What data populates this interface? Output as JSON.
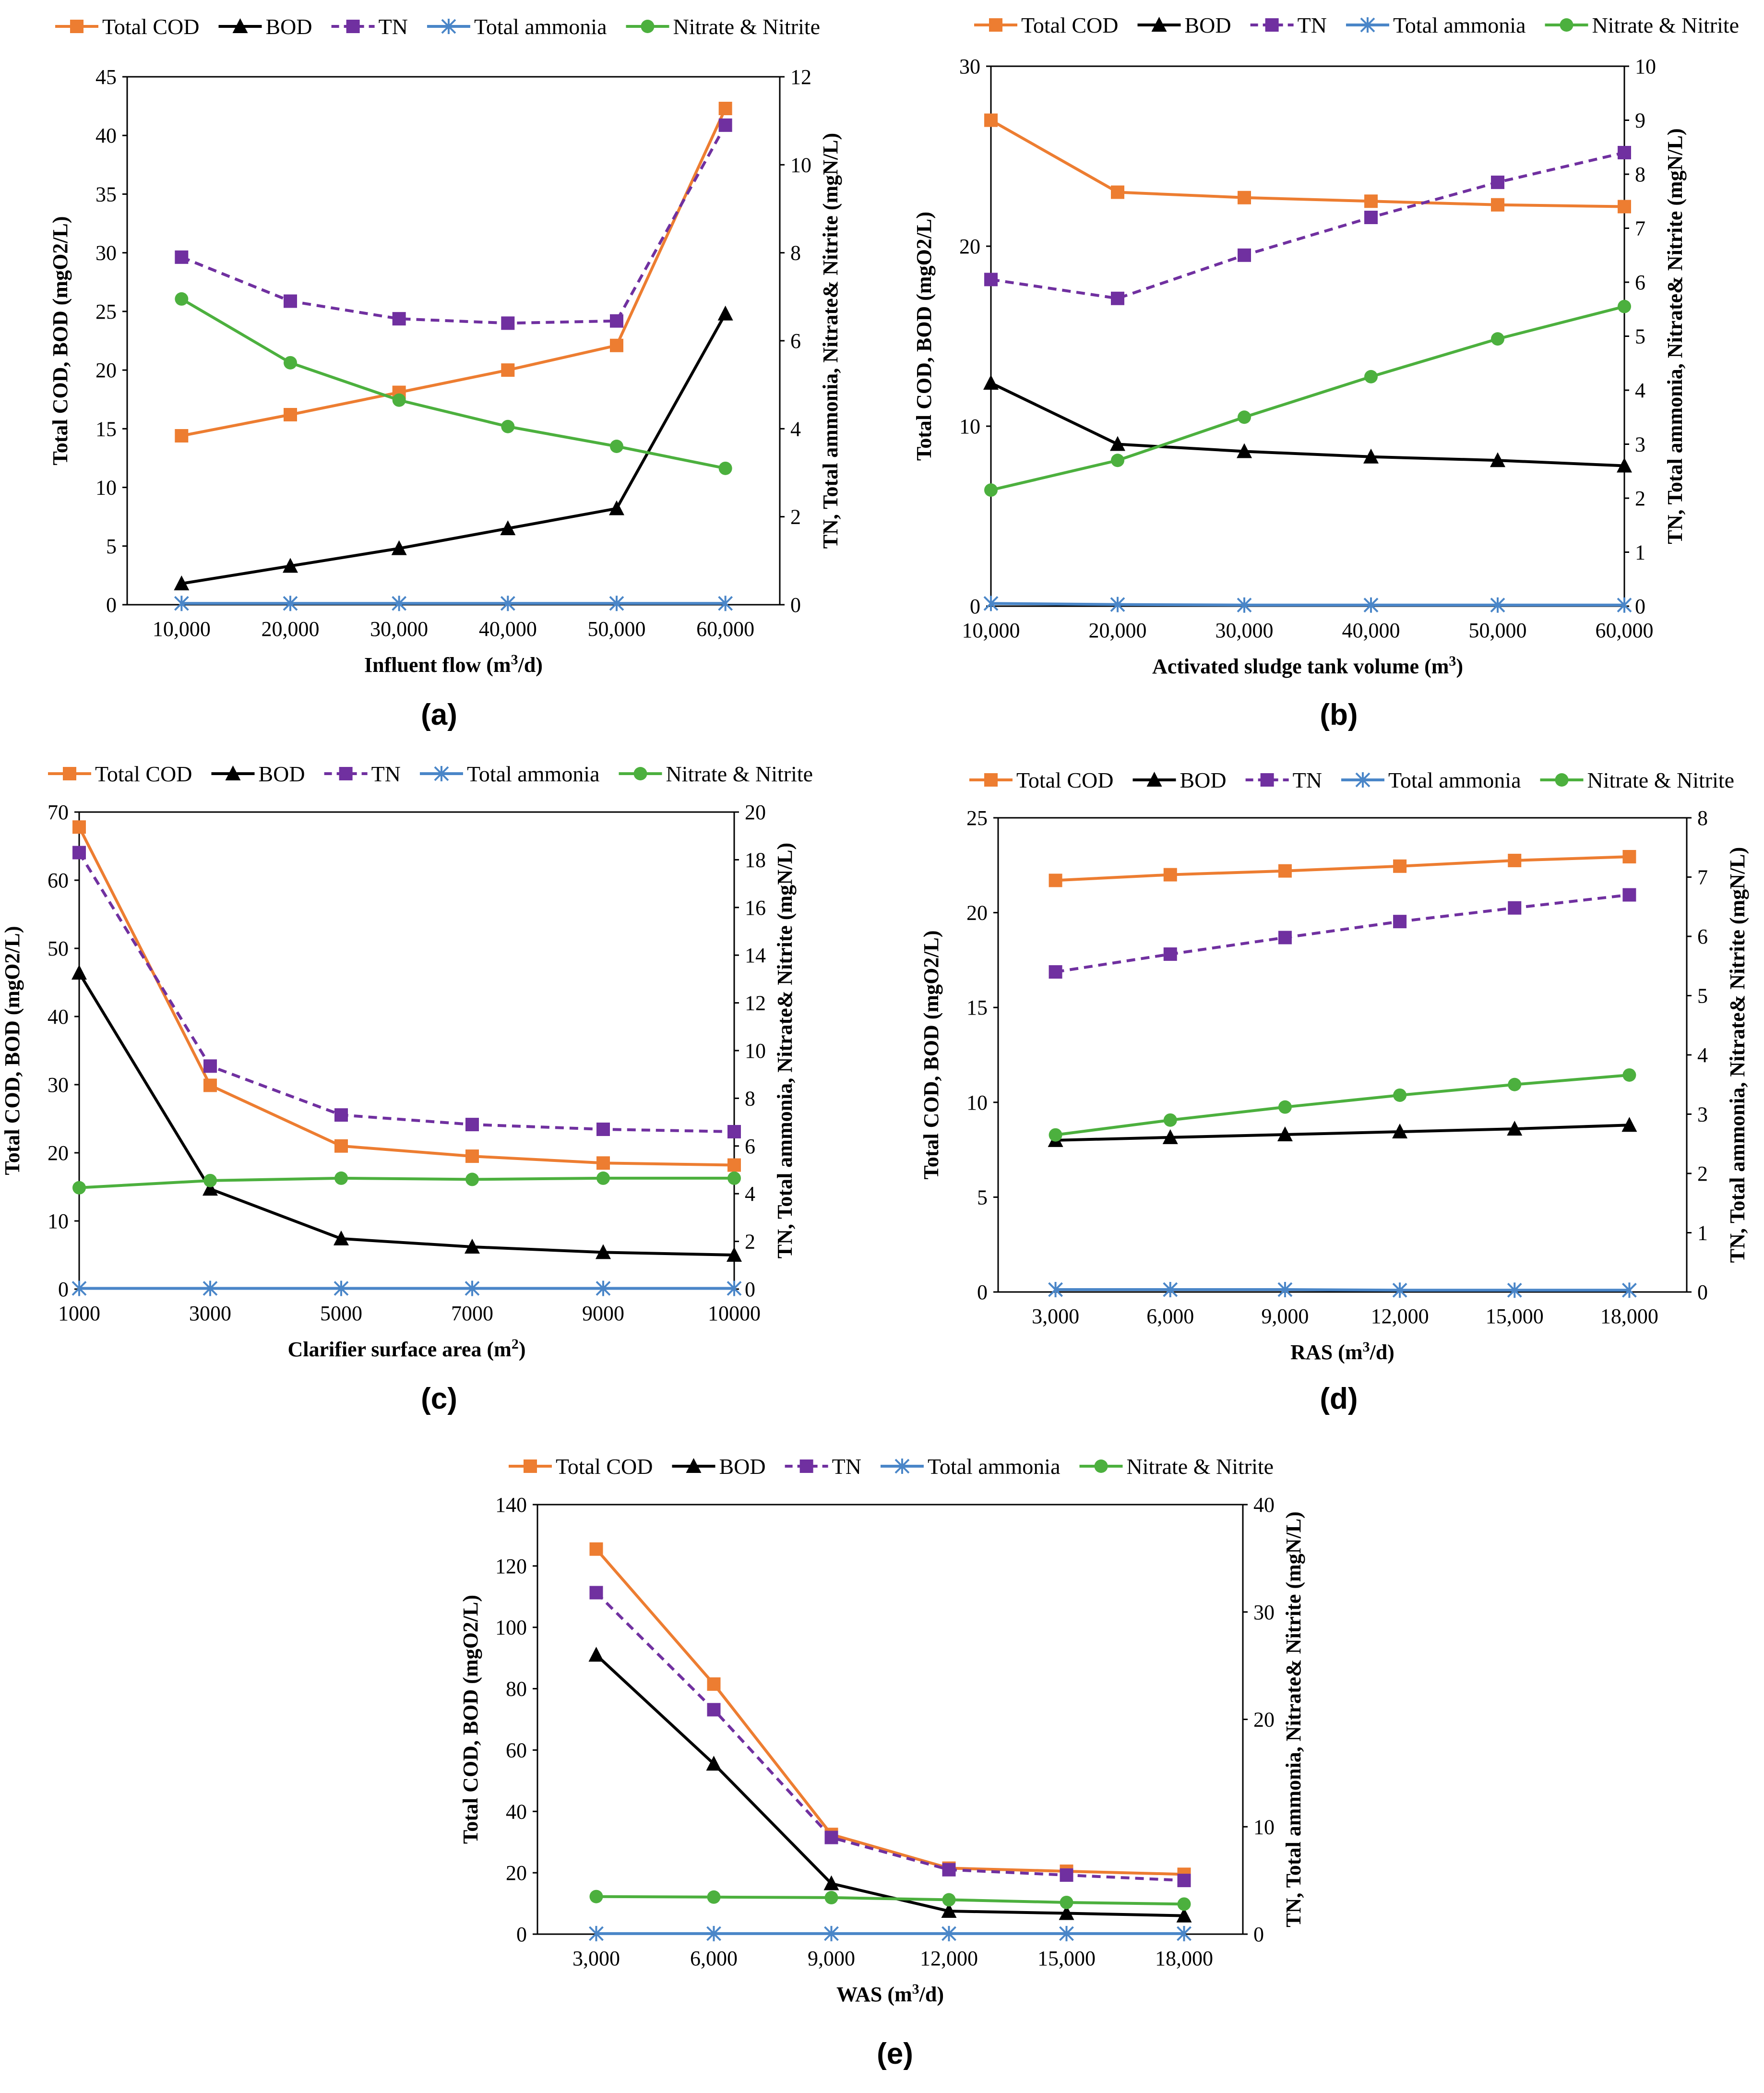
{
  "series_styles": [
    {
      "key": "cod",
      "name": "Total COD",
      "color": "#ED7D31",
      "marker": "square",
      "dash": false
    },
    {
      "key": "bod",
      "name": "BOD",
      "color": "#000000",
      "marker": "triangle",
      "dash": false
    },
    {
      "key": "tn",
      "name": "TN",
      "color": "#7030A0",
      "marker": "square",
      "dash": true
    },
    {
      "key": "amm",
      "name": "Total ammonia",
      "color": "#4A86C8",
      "marker": "asterisk",
      "dash": false
    },
    {
      "key": "nit",
      "name": "Nitrate & Nitrite",
      "color": "#4CB03E",
      "marker": "circle",
      "dash": false
    }
  ],
  "chart_data": [
    {
      "type": "line",
      "label": "(a)",
      "xlabel": "Influent flow (m3/d)",
      "xlabel_main": "Influent flow (m",
      "xlabel_sup": "3",
      "xlabel_tail": "/d)",
      "x": [
        "10,000",
        "20,000",
        "30,000",
        "40,000",
        "50,000",
        "60,000"
      ],
      "x_positions": "category",
      "ylabel": "Total COD, BOD (mgO2/L)",
      "ylim": [
        0,
        45
      ],
      "yticks": [
        0,
        5,
        10,
        15,
        20,
        25,
        30,
        35,
        40,
        45
      ],
      "y2label": "TN, Total ammonia, Nitrate& Nitrite (mgN/L)",
      "y2lim": [
        0,
        12
      ],
      "y2ticks": [
        0,
        2,
        4,
        6,
        8,
        10,
        12
      ],
      "series": [
        {
          "key": "cod",
          "name": "Total COD",
          "axis": "left",
          "values": [
            14.4,
            16.2,
            18.1,
            20.0,
            22.1,
            42.3
          ]
        },
        {
          "key": "bod",
          "name": "BOD",
          "axis": "left",
          "values": [
            1.8,
            3.3,
            4.8,
            6.5,
            8.2,
            24.8
          ]
        },
        {
          "key": "tn",
          "name": "TN",
          "axis": "right",
          "values": [
            7.9,
            6.9,
            6.5,
            6.4,
            6.45,
            10.9
          ]
        },
        {
          "key": "amm",
          "name": "Total ammonia",
          "axis": "right",
          "values": [
            0.03,
            0.03,
            0.03,
            0.03,
            0.03,
            0.03
          ]
        },
        {
          "key": "nit",
          "name": "Nitrate & Nitrite",
          "axis": "right",
          "values": [
            6.95,
            5.5,
            4.65,
            4.05,
            3.6,
            3.1
          ]
        }
      ]
    },
    {
      "type": "line",
      "label": "(b)",
      "xlabel": "Activated sludge tank volume (m3)",
      "xlabel_main": "Activated sludge tank volume (m",
      "xlabel_sup": "3",
      "xlabel_tail": ")",
      "x": [
        "10,000",
        "20,000",
        "30,000",
        "40,000",
        "50,000",
        "60,000"
      ],
      "x_positions": "edge",
      "ylabel": "Total COD, BOD (mgO2/L)",
      "ylim": [
        0,
        30
      ],
      "yticks": [
        0,
        10,
        20,
        30
      ],
      "y2label": "TN, Total ammonia, Nitrate& Nitrite (mgN/L)",
      "y2lim": [
        0,
        10
      ],
      "y2ticks": [
        0,
        1,
        2,
        3,
        4,
        5,
        6,
        7,
        8,
        9,
        10
      ],
      "series": [
        {
          "key": "cod",
          "name": "Total COD",
          "axis": "left",
          "values": [
            27.0,
            23.0,
            22.7,
            22.5,
            22.3,
            22.2
          ]
        },
        {
          "key": "bod",
          "name": "BOD",
          "axis": "left",
          "values": [
            12.4,
            9.0,
            8.6,
            8.3,
            8.1,
            7.8
          ]
        },
        {
          "key": "tn",
          "name": "TN",
          "axis": "right",
          "values": [
            6.05,
            5.7,
            6.5,
            7.2,
            7.85,
            8.4
          ]
        },
        {
          "key": "amm",
          "name": "Total ammonia",
          "axis": "right",
          "values": [
            0.05,
            0.03,
            0.02,
            0.02,
            0.02,
            0.02
          ]
        },
        {
          "key": "nit",
          "name": "Nitrate & Nitrite",
          "axis": "right",
          "values": [
            2.15,
            2.7,
            3.5,
            4.25,
            4.95,
            5.55
          ]
        }
      ]
    },
    {
      "type": "line",
      "label": "(c)",
      "xlabel": "Clarifier surface area (m2)",
      "xlabel_main": "Clarifier surface area (m",
      "xlabel_sup": "2",
      "xlabel_tail": ")",
      "x": [
        "1000",
        "3000",
        "5000",
        "7000",
        "9000",
        "10000"
      ],
      "x_positions": "edge",
      "ylabel": "Total COD, BOD (mgO2/L)",
      "ylim": [
        0,
        70
      ],
      "yticks": [
        0,
        10,
        20,
        30,
        40,
        50,
        60,
        70
      ],
      "y2label": "TN, Total ammonia, Nitrate& Nitrite (mgN/L)",
      "y2lim": [
        0,
        20
      ],
      "y2ticks": [
        0,
        2,
        4,
        6,
        8,
        10,
        12,
        14,
        16,
        18,
        20
      ],
      "series": [
        {
          "key": "cod",
          "name": "Total COD",
          "axis": "left",
          "values": [
            67.8,
            29.9,
            21.0,
            19.5,
            18.5,
            18.2
          ]
        },
        {
          "key": "bod",
          "name": "BOD",
          "axis": "left",
          "values": [
            46.4,
            14.7,
            7.4,
            6.2,
            5.4,
            5.0
          ]
        },
        {
          "key": "tn",
          "name": "TN",
          "axis": "right",
          "values": [
            18.3,
            9.35,
            7.3,
            6.9,
            6.7,
            6.6
          ]
        },
        {
          "key": "amm",
          "name": "Total ammonia",
          "axis": "right",
          "values": [
            0.03,
            0.03,
            0.03,
            0.03,
            0.03,
            0.03
          ]
        },
        {
          "key": "nit",
          "name": "Nitrate & Nitrite",
          "axis": "right",
          "values": [
            4.25,
            4.55,
            4.65,
            4.6,
            4.65,
            4.65
          ]
        }
      ]
    },
    {
      "type": "line",
      "label": "(d)",
      "xlabel": "RAS (m3/d)",
      "xlabel_main": "RAS (m",
      "xlabel_sup": "3",
      "xlabel_tail": "/d)",
      "x": [
        "3,000",
        "6,000",
        "9,000",
        "12,000",
        "15,000",
        "18,000"
      ],
      "x_positions": "category",
      "ylabel": "Total COD, BOD (mgO2/L)",
      "ylim": [
        0,
        25
      ],
      "yticks": [
        0,
        5,
        10,
        15,
        20,
        25
      ],
      "y2label": "TN, Total ammonia, Nitrate& Nitrite (mgN/L)",
      "y2lim": [
        0,
        8
      ],
      "y2ticks": [
        0,
        1,
        2,
        3,
        4,
        5,
        6,
        7,
        8
      ],
      "series": [
        {
          "key": "cod",
          "name": "Total COD",
          "axis": "left",
          "values": [
            21.7,
            22.0,
            22.2,
            22.45,
            22.75,
            22.95
          ]
        },
        {
          "key": "bod",
          "name": "BOD",
          "axis": "left",
          "values": [
            8.0,
            8.15,
            8.3,
            8.45,
            8.6,
            8.8
          ]
        },
        {
          "key": "tn",
          "name": "TN",
          "axis": "right",
          "values": [
            5.4,
            5.7,
            5.98,
            6.25,
            6.48,
            6.7
          ]
        },
        {
          "key": "amm",
          "name": "Total ammonia",
          "axis": "right",
          "values": [
            0.04,
            0.04,
            0.04,
            0.03,
            0.03,
            0.03
          ]
        },
        {
          "key": "nit",
          "name": "Nitrate & Nitrite",
          "axis": "right",
          "values": [
            2.65,
            2.9,
            3.12,
            3.32,
            3.5,
            3.66
          ]
        }
      ]
    },
    {
      "type": "line",
      "label": "(e)",
      "xlabel": "WAS (m3/d)",
      "xlabel_main": "WAS (m",
      "xlabel_sup": "3",
      "xlabel_tail": "/d)",
      "x": [
        "3,000",
        "6,000",
        "9,000",
        "12,000",
        "15,000",
        "18,000"
      ],
      "x_positions": "category",
      "ylabel": "Total COD, BOD (mgO2/L)",
      "ylim": [
        0,
        140
      ],
      "yticks": [
        0,
        20,
        40,
        60,
        80,
        100,
        120,
        140
      ],
      "y2label": "TN, Total ammonia, Nitrate& Nitrite (mgN/L)",
      "y2lim": [
        0,
        40
      ],
      "y2ticks": [
        0,
        10,
        20,
        30,
        40
      ],
      "series": [
        {
          "key": "cod",
          "name": "Total COD",
          "axis": "left",
          "values": [
            125.5,
            81.5,
            32.5,
            21.5,
            20.5,
            19.5
          ]
        },
        {
          "key": "bod",
          "name": "BOD",
          "axis": "left",
          "values": [
            91.0,
            55.5,
            16.5,
            7.5,
            6.8,
            6.0
          ]
        },
        {
          "key": "tn",
          "name": "TN",
          "axis": "right",
          "values": [
            31.8,
            20.9,
            9.0,
            6.0,
            5.5,
            5.0
          ]
        },
        {
          "key": "amm",
          "name": "Total ammonia",
          "axis": "right",
          "values": [
            0.05,
            0.05,
            0.05,
            0.05,
            0.05,
            0.05
          ]
        },
        {
          "key": "nit",
          "name": "Nitrate & Nitrite",
          "axis": "right",
          "values": [
            3.5,
            3.45,
            3.4,
            3.2,
            2.95,
            2.8
          ]
        }
      ]
    }
  ]
}
